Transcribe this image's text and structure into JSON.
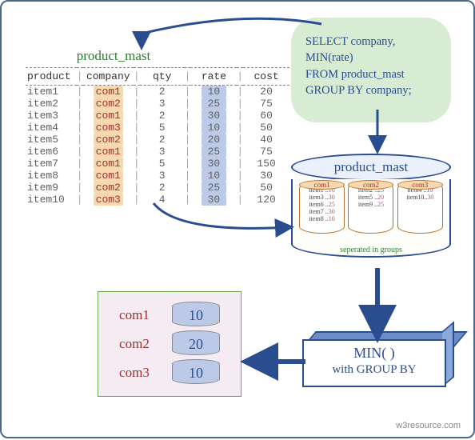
{
  "table": {
    "title": "product_mast",
    "headers": [
      "product",
      "company",
      "qty",
      "rate",
      "cost"
    ],
    "rows": [
      [
        "item1",
        "com1",
        "2",
        "10",
        "20"
      ],
      [
        "item2",
        "com2",
        "3",
        "25",
        "75"
      ],
      [
        "item3",
        "com1",
        "2",
        "30",
        "60"
      ],
      [
        "item4",
        "com3",
        "5",
        "10",
        "50"
      ],
      [
        "item5",
        "com2",
        "2",
        "20",
        "40"
      ],
      [
        "item6",
        "com1",
        "3",
        "25",
        "75"
      ],
      [
        "item7",
        "com1",
        "5",
        "30",
        "150"
      ],
      [
        "item8",
        "com1",
        "3",
        "10",
        "30"
      ],
      [
        "item9",
        "com2",
        "2",
        "25",
        "50"
      ],
      [
        "item10",
        "com3",
        "4",
        "30",
        "120"
      ]
    ],
    "highlight_company_col": true,
    "highlight_rate_col": true
  },
  "sql": {
    "line1": "SELECT company,",
    "line2": "MIN(rate)",
    "line3": "FROM product_mast",
    "line4": "GROUP BY company;"
  },
  "grouped": {
    "title": "product_mast",
    "caption": "seperated in groups",
    "groups": [
      {
        "key": "com1",
        "items": [
          "item1 ..10",
          "item3 ..30",
          "item6 ..25",
          "item7 ..30",
          "item8 ..10"
        ]
      },
      {
        "key": "com2",
        "items": [
          "item2 ..25",
          "item5 ..20",
          "item9 ..25"
        ]
      },
      {
        "key": "com3",
        "items": [
          "item4 ..10",
          "item10..30"
        ]
      }
    ]
  },
  "result": {
    "rows": [
      {
        "label": "com1",
        "value": "10"
      },
      {
        "label": "com2",
        "value": "20"
      },
      {
        "label": "com3",
        "value": "10"
      }
    ]
  },
  "minbox": {
    "line1": "MIN( )",
    "line2": "with GROUP BY"
  },
  "footer": "w3resource.com",
  "colors": {
    "border": "#4a6a8a",
    "green_text": "#2e7d32",
    "sql_bg": "#d7ecd2",
    "sql_text": "#2a4d8f",
    "hl_company": "#f7d9b0",
    "hl_company_text": "#a03030",
    "hl_rate": "#bccae8",
    "result_bg": "#f5ecf3",
    "result_border": "#6aa84f",
    "arrow": "#2a4d8f"
  }
}
